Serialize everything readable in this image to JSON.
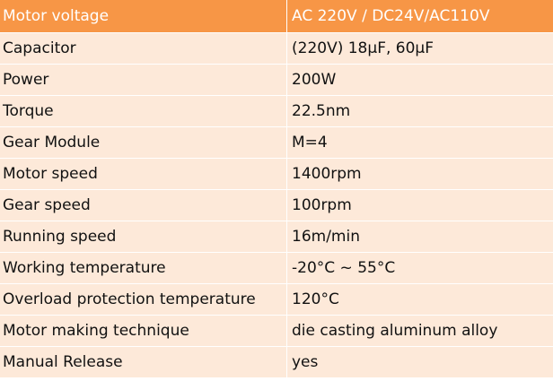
{
  "table": {
    "header": {
      "label": "Motor voltage",
      "value": "AC 220V / DC24V/AC110V"
    },
    "rows": [
      {
        "label": "Capacitor",
        "value": "(220V) 18μF, 60μF"
      },
      {
        "label": "Power",
        "value": "200W"
      },
      {
        "label": "Torque",
        "value": "22.5nm"
      },
      {
        "label": "Gear Module",
        "value": " M=4"
      },
      {
        "label": "Motor speed",
        "value": "1400rpm"
      },
      {
        "label": "Gear speed",
        "value": "100rpm"
      },
      {
        "label": "Running speed",
        "value": "16m/min"
      },
      {
        "label": "Working temperature",
        "value": "-20°C ~ 55°C"
      },
      {
        "label": "Overload protection temperature",
        "value": "120°C"
      },
      {
        "label": "Motor making technique",
        "value": "die casting aluminum alloy"
      },
      {
        "label": "Manual Release",
        "value": "yes"
      }
    ]
  },
  "colors": {
    "header_bg": "#f79646",
    "row_bg": "#fde9d9",
    "header_text": "#ffffff",
    "body_text": "#111111"
  }
}
